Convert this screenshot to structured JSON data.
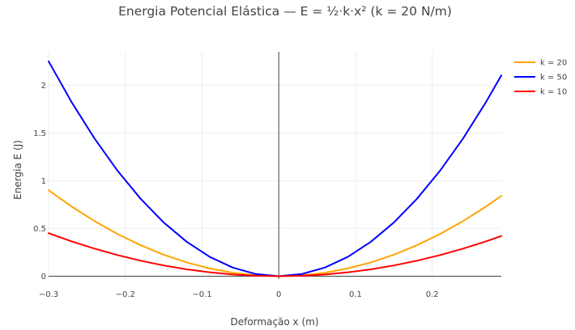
{
  "chart_data": {
    "type": "line",
    "title": "Energia Potencial Elástica — E = ½·k·x² (k = 20 N/m)",
    "xlabel": "Deformação x (m)",
    "ylabel": "Energia E (J)",
    "xlim": [
      -0.3,
      0.29
    ],
    "ylim": [
      -0.03,
      2.35
    ],
    "x_ticks": [
      -0.3,
      -0.2,
      -0.1,
      0,
      0.1,
      0.2
    ],
    "x_tick_labels": [
      "−0.3",
      "−0.2",
      "−0.1",
      "0",
      "0.1",
      "0.2"
    ],
    "y_ticks": [
      0,
      0.5,
      1,
      1.5,
      2
    ],
    "y_tick_labels": [
      "0",
      "0.5",
      "1",
      "1.5",
      "2"
    ],
    "grid": true,
    "legend_position": "top-right",
    "series": [
      {
        "name": "k = 20",
        "color": "#FFA500",
        "x": [
          -0.3,
          -0.27,
          -0.24,
          -0.21,
          -0.18,
          -0.15,
          -0.12,
          -0.09,
          -0.06,
          -0.03,
          0,
          0.03,
          0.06,
          0.09,
          0.12,
          0.15,
          0.18,
          0.21,
          0.24,
          0.27,
          0.29
        ],
        "y": [
          0.9,
          0.729,
          0.576,
          0.441,
          0.324,
          0.225,
          0.144,
          0.081,
          0.036,
          0.009,
          0,
          0.009,
          0.036,
          0.081,
          0.144,
          0.225,
          0.324,
          0.441,
          0.576,
          0.729,
          0.841
        ]
      },
      {
        "name": "k = 50",
        "color": "#0000FF",
        "x": [
          -0.3,
          -0.27,
          -0.24,
          -0.21,
          -0.18,
          -0.15,
          -0.12,
          -0.09,
          -0.06,
          -0.03,
          0,
          0.03,
          0.06,
          0.09,
          0.12,
          0.15,
          0.18,
          0.21,
          0.24,
          0.27,
          0.29
        ],
        "y": [
          2.25,
          1.8225,
          1.44,
          1.1025,
          0.81,
          0.5625,
          0.36,
          0.2025,
          0.09,
          0.0225,
          0,
          0.0225,
          0.09,
          0.2025,
          0.36,
          0.5625,
          0.81,
          1.1025,
          1.44,
          1.8225,
          2.1025
        ]
      },
      {
        "name": "k = 10",
        "color": "#FF0000",
        "x": [
          -0.3,
          -0.27,
          -0.24,
          -0.21,
          -0.18,
          -0.15,
          -0.12,
          -0.09,
          -0.06,
          -0.03,
          0,
          0.03,
          0.06,
          0.09,
          0.12,
          0.15,
          0.18,
          0.21,
          0.24,
          0.27,
          0.29
        ],
        "y": [
          0.45,
          0.3645,
          0.288,
          0.2205,
          0.162,
          0.1125,
          0.072,
          0.0405,
          0.018,
          0.0045,
          0,
          0.0045,
          0.018,
          0.0405,
          0.072,
          0.1125,
          0.162,
          0.2205,
          0.288,
          0.3645,
          0.4205
        ]
      }
    ]
  }
}
